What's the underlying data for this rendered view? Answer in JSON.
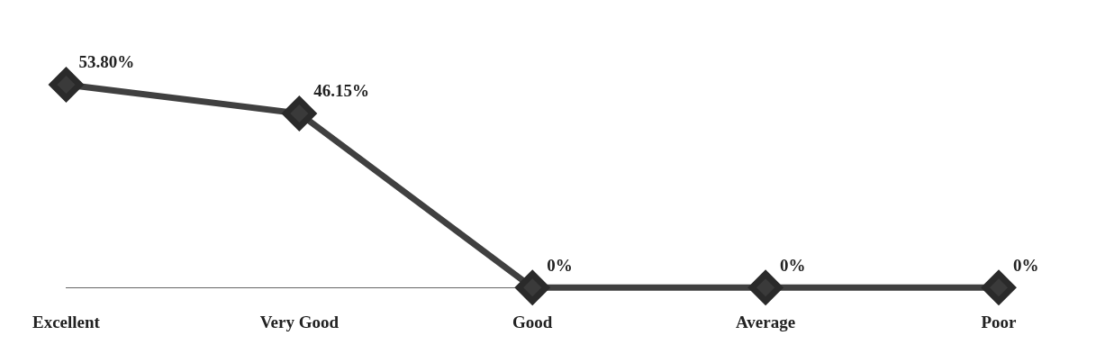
{
  "chart_data": {
    "type": "line",
    "categories": [
      "Excellent",
      "Very Good",
      "Good",
      "Average",
      "Poor"
    ],
    "values": [
      53.8,
      46.15,
      0,
      0,
      0
    ],
    "value_labels": [
      "53.80%",
      "46.15%",
      "0%",
      "0%",
      "0%"
    ],
    "color": "#404040",
    "marker": "diamond",
    "line_style": "solid",
    "grid": false,
    "legend": false,
    "tick_labels": "x"
  }
}
